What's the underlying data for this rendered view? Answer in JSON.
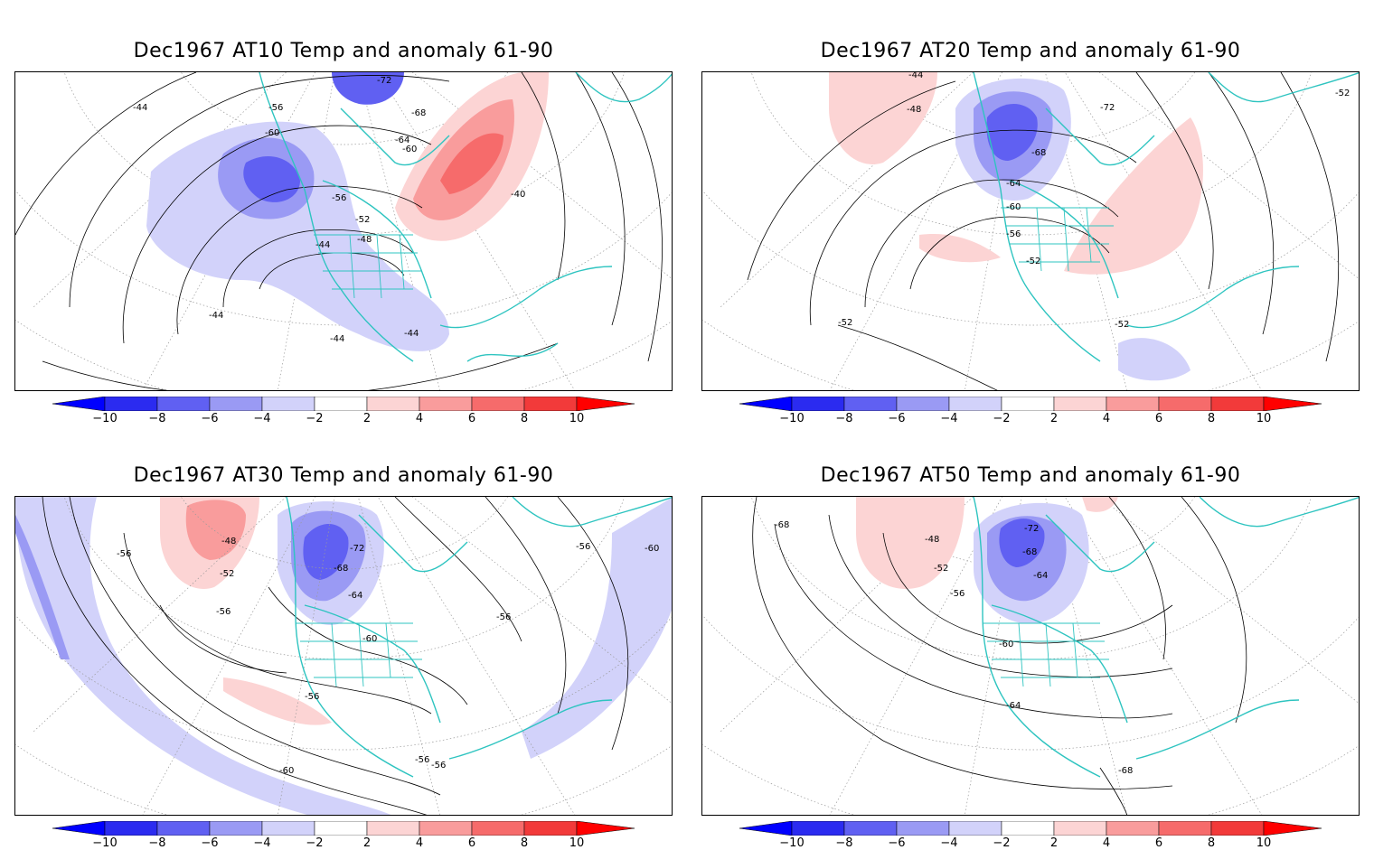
{
  "colors": {
    "coast": "#2ec4c0",
    "contour": "#000000",
    "grid": "#9a9a9a",
    "neg": [
      "#2b2bf0",
      "#6060f2",
      "#9a9af4",
      "#d2d2fa"
    ],
    "pos": [
      "#fcd4d4",
      "#f99c9c",
      "#f66b6b",
      "#f23a3a"
    ]
  },
  "colorbar": {
    "labels": [
      "−10",
      "−8",
      "−6",
      "−4",
      "−2",
      "2",
      "4",
      "6",
      "8",
      "10"
    ],
    "arrow_left_color": "#0000ff",
    "arrow_right_color": "#ff0000"
  },
  "panels": [
    {
      "title": "Dec1967 AT10 Temp and anomaly 61-90",
      "contour_labels": [
        "-44",
        "-56",
        "-60",
        "-72",
        "-68",
        "-64",
        "-60",
        "-56",
        "-52",
        "-48",
        "-44",
        "-40",
        "-44",
        "-44",
        "-44"
      ]
    },
    {
      "title": "Dec1967 AT20 Temp and anomaly 61-90",
      "contour_labels": [
        "-44",
        "-48",
        "-72",
        "-68",
        "-64",
        "-60",
        "-56",
        "-52",
        "-52",
        "-52",
        "-52"
      ]
    },
    {
      "title": "Dec1967 AT30 Temp and anomaly 61-90",
      "contour_labels": [
        "-48",
        "-52",
        "-56",
        "-56",
        "-72",
        "-68",
        "-64",
        "-60",
        "-56",
        "-56",
        "-56",
        "-60",
        "-60",
        "-56",
        "-56"
      ]
    },
    {
      "title": "Dec1967 AT50 Temp and anomaly 61-90",
      "contour_labels": [
        "-68",
        "-72",
        "-48",
        "-52",
        "-56",
        "-68",
        "-64",
        "-60",
        "-64",
        "-68"
      ]
    }
  ]
}
